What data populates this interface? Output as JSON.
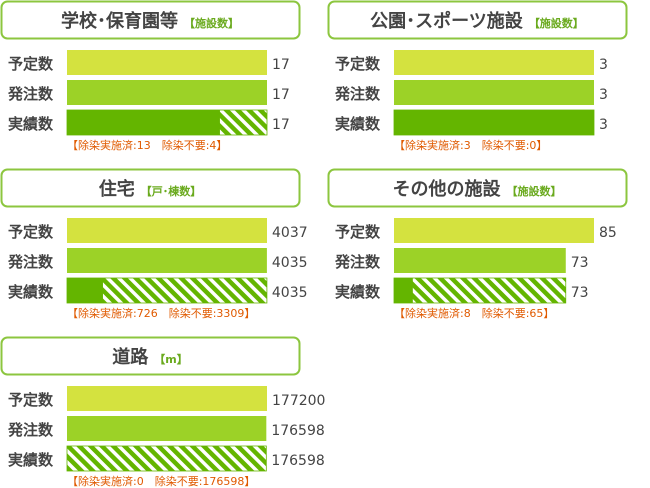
{
  "colors": {
    "frame": "#8cc63f",
    "planned": "#d4e23f",
    "ordered": "#9cd227",
    "done": "#64b500",
    "stripe": "#64b500",
    "title": "#444444",
    "note": "#e05a00"
  },
  "chart_data": [
    {
      "type": "bar",
      "title": "学校･保育園等",
      "unit": "【施設数】",
      "categories": [
        "予定数",
        "発注数",
        "実績数"
      ],
      "values": [
        17,
        17,
        17
      ],
      "display_values": [
        "17",
        "17",
        "17"
      ],
      "completed": 13,
      "not_required": 4,
      "note": "【除染実施済:13　除染不要:4】"
    },
    {
      "type": "bar",
      "title": "公園･スポーツ施設",
      "unit": "【施設数】",
      "categories": [
        "予定数",
        "発注数",
        "実績数"
      ],
      "values": [
        3,
        3,
        3
      ],
      "display_values": [
        "3",
        "3",
        "3"
      ],
      "completed": 3,
      "not_required": 0,
      "note": "【除染実施済:3　除染不要:0】"
    },
    {
      "type": "bar",
      "title": "住宅",
      "unit": "【戸･棟数】",
      "categories": [
        "予定数",
        "発注数",
        "実績数"
      ],
      "values": [
        4037,
        4035,
        4035
      ],
      "display_values": [
        "4037",
        "4035",
        "4035"
      ],
      "completed": 726,
      "not_required": 3309,
      "note": "【除染実施済:726　除染不要:3309】"
    },
    {
      "type": "bar",
      "title": "その他の施設",
      "unit": "【施設数】",
      "categories": [
        "予定数",
        "発注数",
        "実績数"
      ],
      "values": [
        85,
        73,
        73
      ],
      "display_values": [
        "85",
        "73",
        "73"
      ],
      "completed": 8,
      "not_required": 65,
      "note": "【除染実施済:8　除染不要:65】"
    },
    {
      "type": "bar",
      "title": "道路",
      "unit": "【m】",
      "categories": [
        "予定数",
        "発注数",
        "実績数"
      ],
      "values": [
        177200,
        176598,
        176598
      ],
      "display_values": [
        "177200",
        "176598",
        "176598"
      ],
      "completed": 0,
      "not_required": 176598,
      "note": "【除染実施済:0　除染不要:176598】"
    }
  ]
}
